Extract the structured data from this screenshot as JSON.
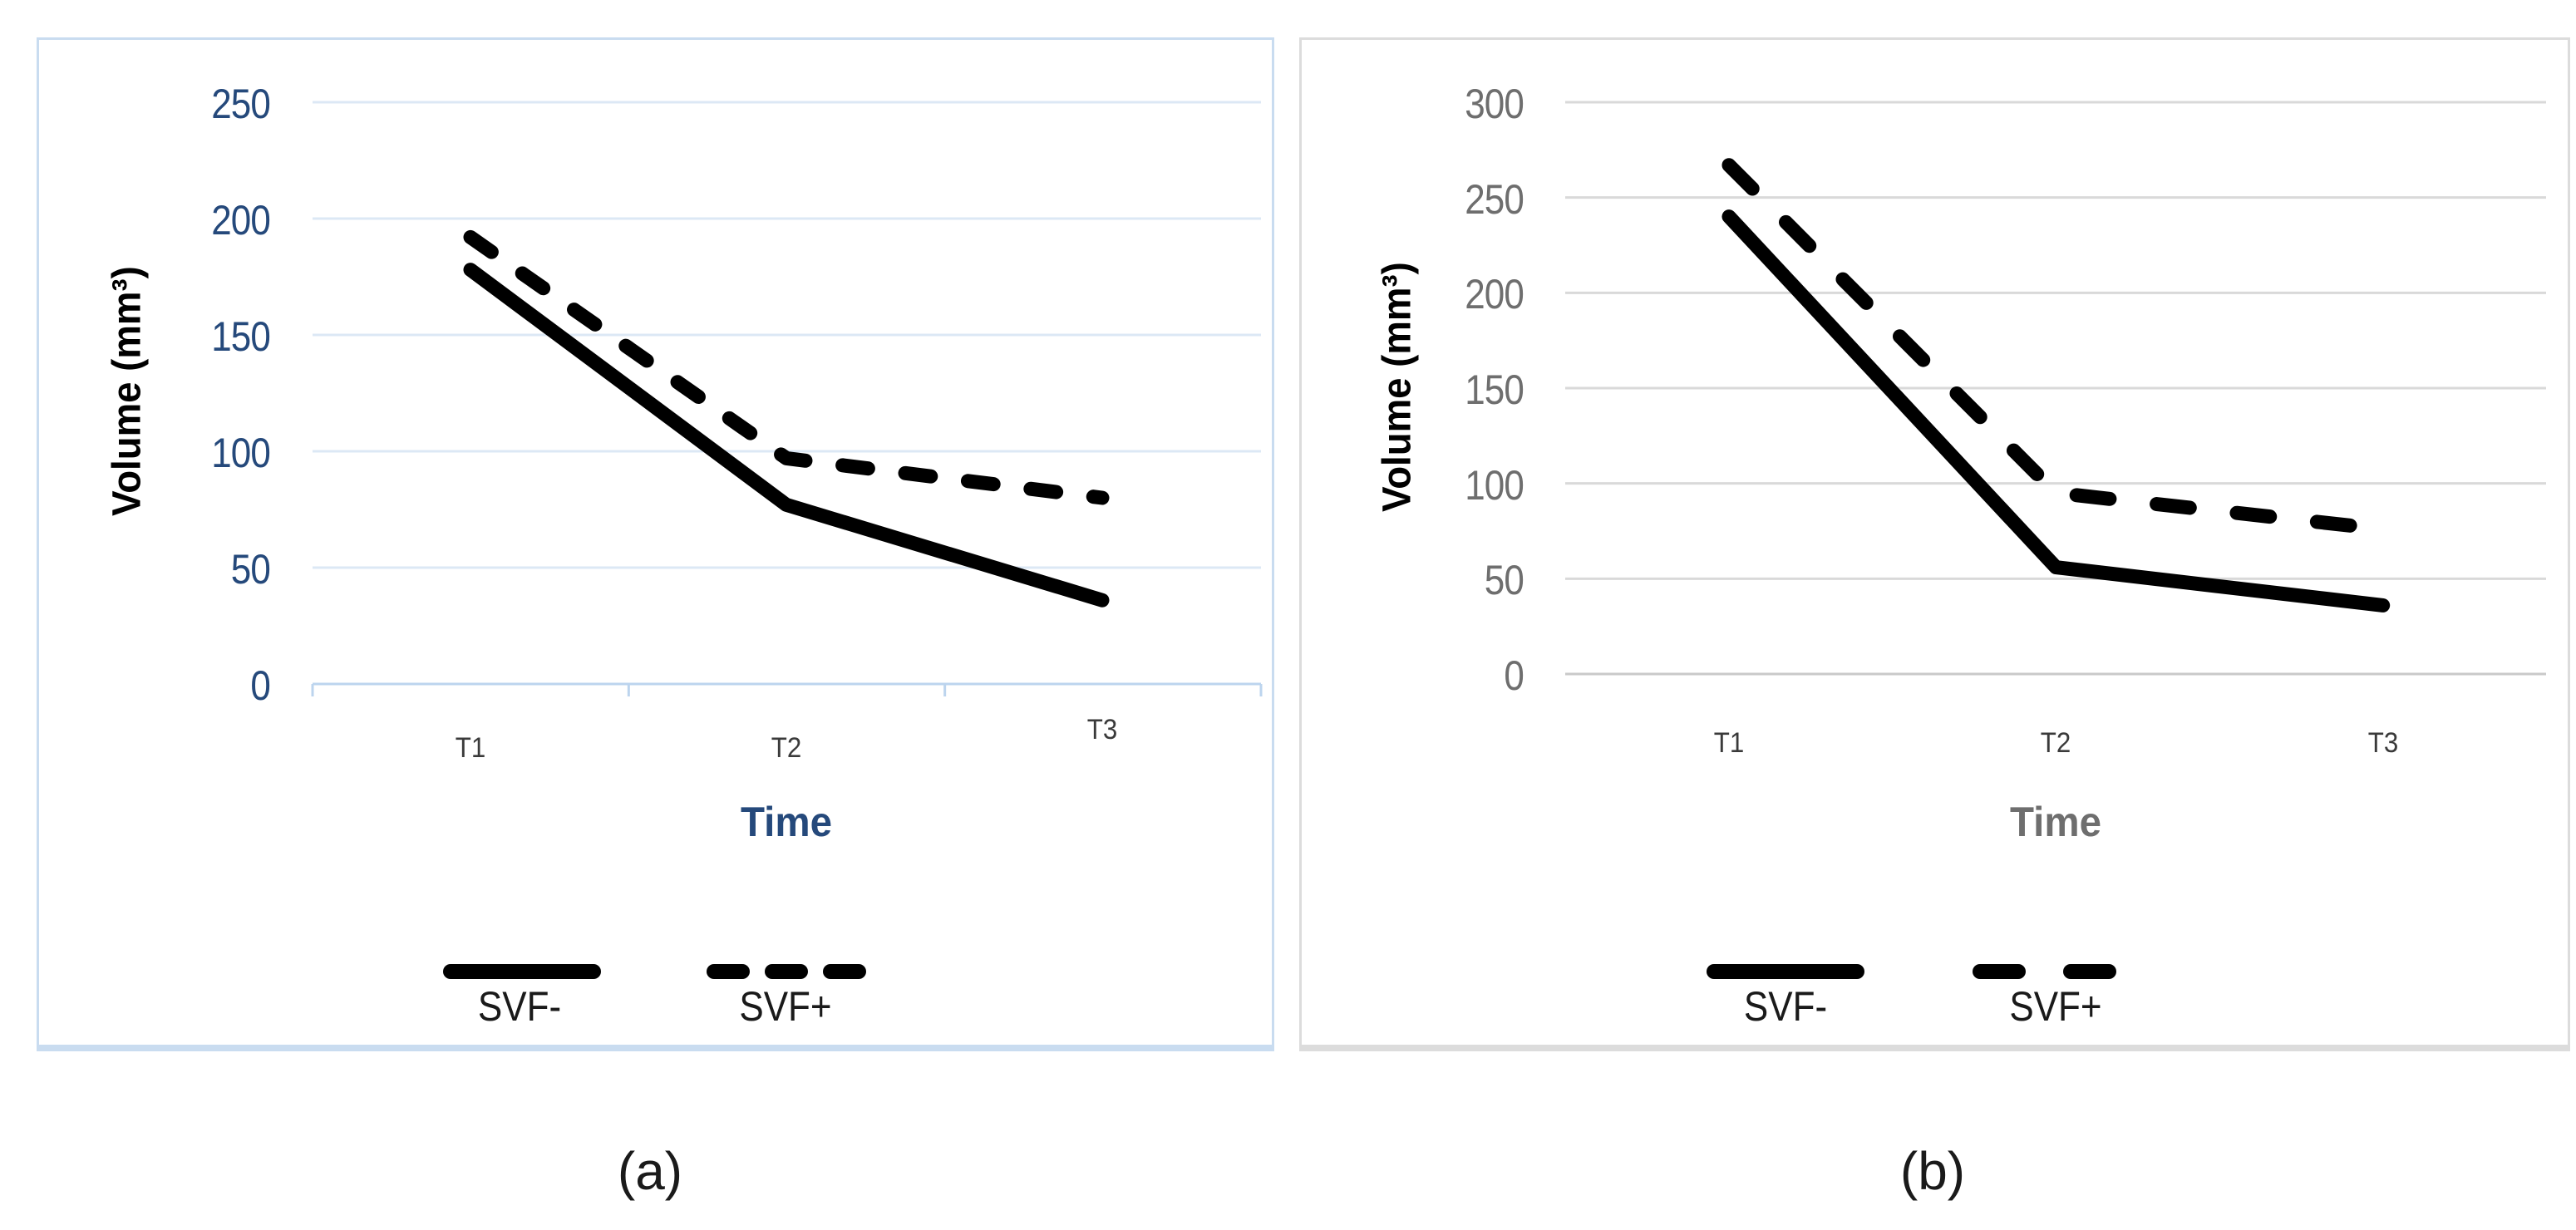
{
  "figure": {
    "type": "dual-line-chart-figure",
    "captions": [
      "(a)",
      "(b)"
    ]
  },
  "chart_data": [
    {
      "type": "line",
      "caption": "(a)",
      "title": "",
      "ylabel": "Volume (mm³)",
      "xlabel": "Time",
      "categories": [
        "T1",
        "T2",
        "T3"
      ],
      "y_ticks": [
        0,
        50,
        100,
        150,
        200,
        250
      ],
      "ylim": [
        0,
        250
      ],
      "grid": "horizontal",
      "legend_position": "bottom",
      "series": [
        {
          "name": "SVF-",
          "style": "solid",
          "values": [
            178,
            77,
            36
          ]
        },
        {
          "name": "SVF+",
          "style": "dashed",
          "values": [
            192,
            97,
            80
          ]
        }
      ],
      "colors": {
        "tick_labels": "#25497B",
        "axis_title": "#25497B",
        "y_axis_title": "#000000",
        "category_labels": "#3A3A3A",
        "gridlines": "#DCE8F5",
        "axis_line": "#BCD4EE",
        "series_line": "#000000",
        "panel_border": "#C9DCF0",
        "legend_text": "#1A1A1A"
      }
    },
    {
      "type": "line",
      "caption": "(b)",
      "title": "",
      "ylabel": "Volume (mm³)",
      "xlabel": "Time",
      "categories": [
        "T1",
        "T2",
        "T3"
      ],
      "y_ticks": [
        0,
        50,
        100,
        150,
        200,
        250,
        300
      ],
      "ylim": [
        0,
        300
      ],
      "grid": "horizontal",
      "legend_position": "bottom",
      "series": [
        {
          "name": "SVF-",
          "style": "solid",
          "values": [
            240,
            56,
            36
          ]
        },
        {
          "name": "SVF+",
          "style": "dashed",
          "values": [
            267,
            95,
            76
          ]
        }
      ],
      "colors": {
        "tick_labels": "#6E6E6E",
        "axis_title": "#6E6E6E",
        "y_axis_title": "#000000",
        "category_labels": "#3A3A3A",
        "gridlines": "#D9D9D9",
        "axis_line": "#C9C9C9",
        "series_line": "#000000",
        "panel_border": "#DCDCDC",
        "legend_text": "#1A1A1A"
      }
    }
  ]
}
